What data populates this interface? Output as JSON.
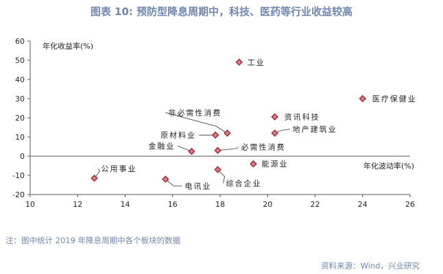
{
  "title": "图表 10: 预防型降息周期中，科技、医药等行业收益较高",
  "note": "注：图中统计 2019 年降息周期中各个板块的数据",
  "source": "资料来源：Wind，兴业研究",
  "colors": {
    "title": "#6f86ad",
    "marker_fill": "#d8808c",
    "marker_stroke": "#a8323f",
    "axis": "#555555",
    "text": "#222222"
  },
  "chart_data": {
    "type": "scatter",
    "xlabel": "年化波动率(%)",
    "ylabel": "年化收益率(%)",
    "xlim": [
      10,
      26
    ],
    "ylim": [
      -20,
      60
    ],
    "xticks": [
      10,
      12,
      14,
      16,
      18,
      20,
      22,
      24,
      26
    ],
    "yticks": [
      60,
      50,
      40,
      30,
      20,
      10,
      0,
      -10,
      -20
    ],
    "grid": false,
    "legend": "none",
    "points": [
      {
        "label": "工业",
        "x": 18.8,
        "y": 49
      },
      {
        "label": "医疗保健业",
        "x": 24.0,
        "y": 30
      },
      {
        "label": "资讯科技",
        "x": 20.3,
        "y": 20.5
      },
      {
        "label": "地产建筑业",
        "x": 20.3,
        "y": 12
      },
      {
        "label": "非必需性消费",
        "x": 18.3,
        "y": 12
      },
      {
        "label": "原材料业",
        "x": 17.8,
        "y": 11
      },
      {
        "label": "金融业",
        "x": 16.8,
        "y": 2.5
      },
      {
        "label": "必需性消费",
        "x": 17.9,
        "y": 3
      },
      {
        "label": "能源业",
        "x": 19.4,
        "y": -4
      },
      {
        "label": "综合企业",
        "x": 17.9,
        "y": -7
      },
      {
        "label": "公用事业",
        "x": 12.7,
        "y": -11.5
      },
      {
        "label": "电讯业",
        "x": 15.7,
        "y": -12
      }
    ]
  }
}
